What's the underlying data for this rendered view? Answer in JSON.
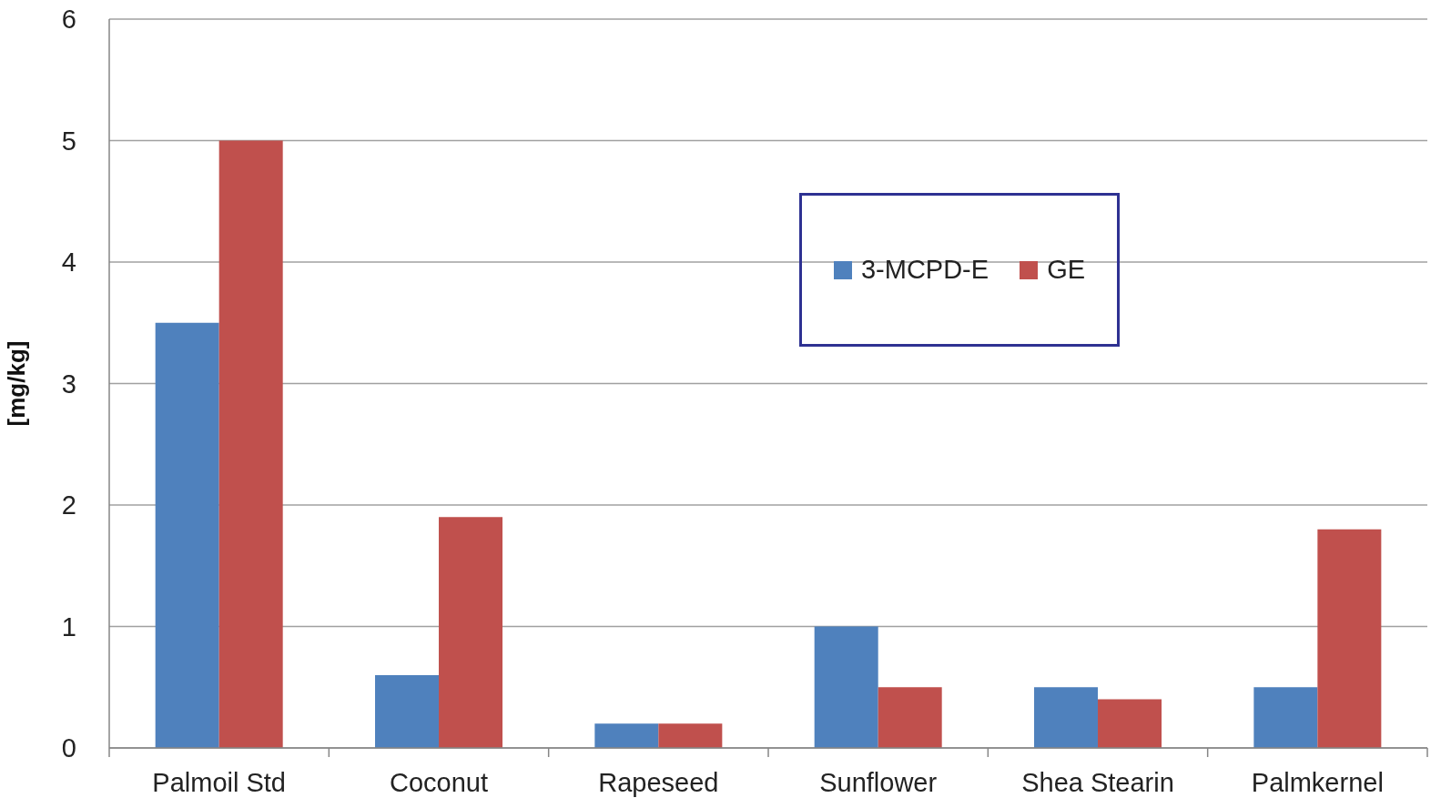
{
  "chart_data": {
    "type": "bar",
    "ylabel": "[mg/kg]",
    "categories": [
      "Palmoil Std",
      "Coconut",
      "Rapeseed",
      "Sunflower",
      "Shea Stearin",
      "Palmkernel"
    ],
    "series": [
      {
        "name": "3-MCPD-E",
        "color": "#4f81bd",
        "values": [
          3.5,
          0.6,
          0.2,
          1.0,
          0.5,
          0.5
        ]
      },
      {
        "name": "GE",
        "color": "#c0504d",
        "values": [
          5.0,
          1.9,
          0.2,
          0.5,
          0.4,
          1.8
        ]
      }
    ],
    "ylim": [
      0,
      6
    ],
    "yticks": [
      0,
      1,
      2,
      3,
      4,
      5,
      6
    ],
    "grid": "y",
    "legend": "top right"
  }
}
